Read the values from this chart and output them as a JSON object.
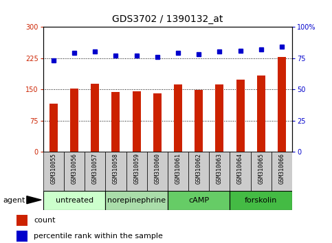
{
  "title": "GDS3702 / 1390132_at",
  "samples": [
    "GSM310055",
    "GSM310056",
    "GSM310057",
    "GSM310058",
    "GSM310059",
    "GSM310060",
    "GSM310061",
    "GSM310062",
    "GSM310063",
    "GSM310064",
    "GSM310065",
    "GSM310066"
  ],
  "count_values": [
    115,
    152,
    163,
    143,
    146,
    140,
    162,
    148,
    162,
    173,
    183,
    228
  ],
  "percentile_values": [
    73,
    79,
    80,
    77,
    77,
    76,
    79,
    78,
    80,
    81,
    82,
    84
  ],
  "bar_color": "#cc2200",
  "dot_color": "#0000cc",
  "left_ylim": [
    0,
    300
  ],
  "right_ylim": [
    0,
    100
  ],
  "left_yticks": [
    0,
    75,
    150,
    225,
    300
  ],
  "right_yticks": [
    0,
    25,
    50,
    75,
    100
  ],
  "right_yticklabels": [
    "0",
    "25",
    "50",
    "75",
    "100%"
  ],
  "hlines": [
    75,
    150,
    225
  ],
  "agent_groups": [
    {
      "label": "untreated",
      "start": 0,
      "end": 3,
      "color": "#ccffcc"
    },
    {
      "label": "norepinephrine",
      "start": 3,
      "end": 6,
      "color": "#aaddaa"
    },
    {
      "label": "cAMP",
      "start": 6,
      "end": 9,
      "color": "#66cc66"
    },
    {
      "label": "forskolin",
      "start": 9,
      "end": 12,
      "color": "#44bb44"
    }
  ],
  "legend_count_label": "count",
  "legend_pct_label": "percentile rank within the sample",
  "bar_width": 0.4,
  "title_fontsize": 10,
  "tick_fontsize": 7,
  "agent_label_fontsize": 8,
  "label_color_left": "#cc2200",
  "label_color_right": "#0000cc",
  "sample_box_color": "#cccccc",
  "sample_fontsize": 6
}
